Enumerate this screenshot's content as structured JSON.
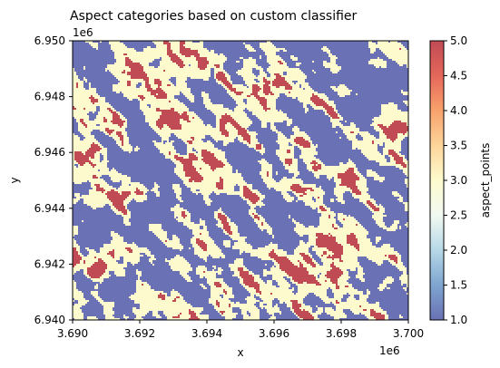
{
  "chart_data": {
    "type": "heatmap",
    "title": "Aspect categories based on custom classifier",
    "xlabel": "x",
    "ylabel": "y",
    "x_offset_label": "1e6",
    "y_offset_label": "1e6",
    "x_range": [
      3.69,
      3.7
    ],
    "y_range": [
      6.94,
      6.95
    ],
    "x_ticks": [
      "3.690",
      "3.692",
      "3.694",
      "3.696",
      "3.698",
      "3.700"
    ],
    "y_ticks": [
      "6.950",
      "6.948",
      "6.946",
      "6.944",
      "6.942",
      "6.940"
    ],
    "colorbar": {
      "label": "aspect_points",
      "range": [
        1.0,
        5.0
      ],
      "ticks": [
        "1.0",
        "1.5",
        "2.0",
        "2.5",
        "3.0",
        "3.5",
        "4.0",
        "4.5",
        "5.0"
      ],
      "colormap": "RdYlBu_r",
      "alpha": 0.7
    },
    "categories": [
      {
        "value": 1,
        "color": "#6a71b4",
        "approx_share": 0.52
      },
      {
        "value": 3,
        "color": "#fdfbce",
        "approx_share": 0.3
      },
      {
        "value": 5,
        "color": "#c14b55",
        "approx_share": 0.18
      }
    ],
    "grid": false
  },
  "colors": {
    "cmap_stops": [
      "#6a71b4",
      "#7ea5d0",
      "#b6d8e7",
      "#f2f9f2",
      "#fdfbce",
      "#fdd59a",
      "#f8a26c",
      "#e5675a",
      "#c14b55"
    ]
  }
}
